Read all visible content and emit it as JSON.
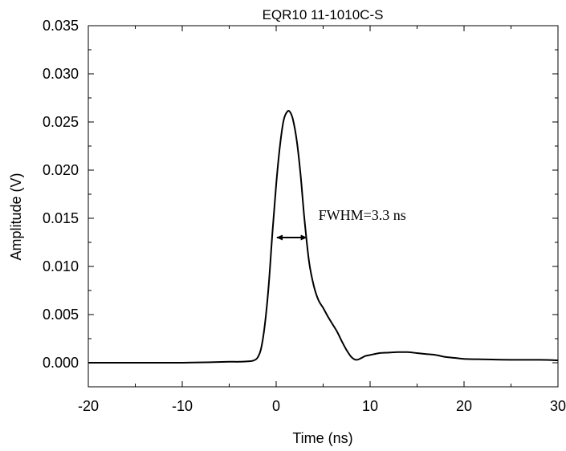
{
  "chart_data": {
    "type": "line",
    "title": "EQR10 11-1010C-S",
    "xlabel": "Time (ns)",
    "ylabel": "Amplitude (V)",
    "xlim": [
      -20,
      30
    ],
    "ylim": [
      -0.0025,
      0.035
    ],
    "x_ticks": [
      -20,
      -10,
      0,
      10,
      20,
      30
    ],
    "x_tick_labels": [
      "-20",
      "-10",
      "0",
      "10",
      "20",
      "30"
    ],
    "y_ticks": [
      0.0,
      0.005,
      0.01,
      0.015,
      0.02,
      0.025,
      0.03,
      0.035
    ],
    "y_tick_labels": [
      "0.000",
      "0.005",
      "0.010",
      "0.015",
      "0.020",
      "0.025",
      "0.030",
      "0.035"
    ],
    "grid": false,
    "legend": "none",
    "series": [
      {
        "color": "#000000",
        "x": [
          -20,
          -15,
          -10,
          -7,
          -5,
          -4,
          -3,
          -2.5,
          -2,
          -1.6,
          -1.2,
          -0.8,
          -0.4,
          0,
          0.4,
          0.8,
          1.2,
          1.5,
          1.8,
          2.2,
          2.6,
          3,
          3.5,
          4,
          4.5,
          5,
          5.5,
          6,
          6.5,
          7,
          7.5,
          8,
          8.5,
          9,
          9.5,
          10,
          11,
          12,
          13,
          14,
          15,
          16,
          17,
          18,
          19,
          20,
          22,
          25,
          28,
          30
        ],
        "y": [
          0.0,
          0.0,
          0.0,
          5e-05,
          0.0001,
          0.0001,
          0.00015,
          0.0002,
          0.0005,
          0.0015,
          0.004,
          0.008,
          0.0135,
          0.0185,
          0.0225,
          0.0252,
          0.0261,
          0.026,
          0.0252,
          0.023,
          0.0195,
          0.015,
          0.0105,
          0.008,
          0.0065,
          0.0057,
          0.0048,
          0.004,
          0.0032,
          0.0022,
          0.0013,
          0.0006,
          0.0003,
          0.00045,
          0.0007,
          0.0008,
          0.001,
          0.00105,
          0.0011,
          0.0011,
          0.001,
          0.0009,
          0.0008,
          0.0006,
          0.0005,
          0.0004,
          0.00035,
          0.0003,
          0.0003,
          0.00025
        ]
      }
    ],
    "annotation": {
      "text": "FWHM=3.3 ns",
      "x_start": 0,
      "x_end": 3.3,
      "y": 0.013
    }
  }
}
